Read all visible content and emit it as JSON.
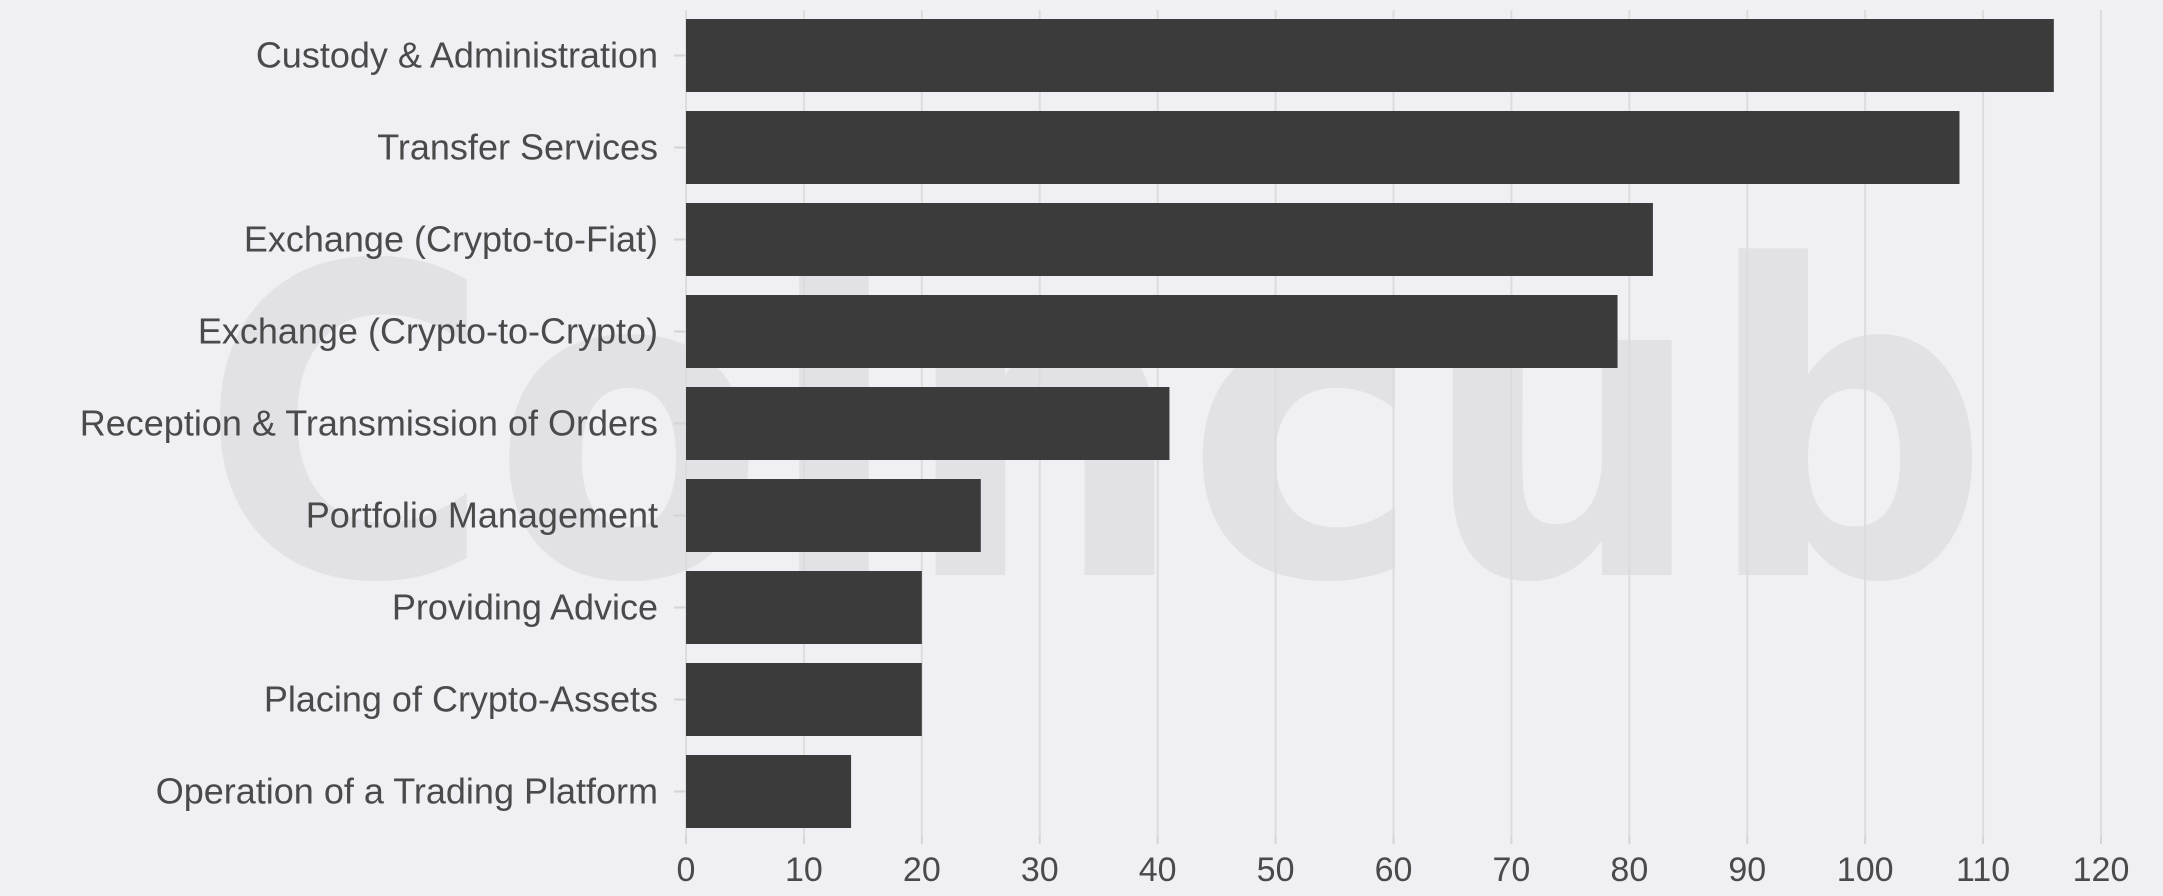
{
  "watermark": "Coincub",
  "chart_data": {
    "type": "bar",
    "orientation": "horizontal",
    "categories": [
      "Custody & Administration",
      "Transfer Services",
      "Exchange (Crypto-to-Fiat)",
      "Exchange (Crypto-to-Crypto)",
      "Reception & Transmission of Orders",
      "Portfolio Management",
      "Providing Advice",
      "Placing of Crypto-Assets",
      "Operation of a Trading Platform"
    ],
    "values": [
      116,
      108,
      82,
      79,
      41,
      25,
      20,
      20,
      14
    ],
    "xlim": [
      0,
      120
    ],
    "xticks": [
      0,
      10,
      20,
      30,
      40,
      50,
      60,
      70,
      80,
      90,
      100,
      110,
      120
    ],
    "grid": true,
    "bar_color": "#3b3b3b",
    "background": "#f0f0f4"
  }
}
